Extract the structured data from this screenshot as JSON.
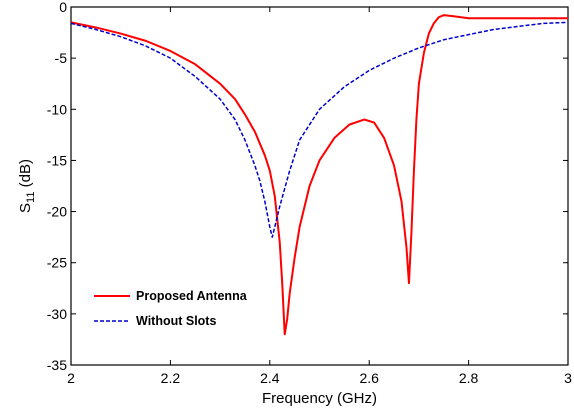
{
  "chart_data": {
    "type": "line",
    "title": "",
    "xlabel": "Frequency (GHz)",
    "ylabel": {
      "main": "S",
      "sub": "11",
      "unit": " (dB)"
    },
    "xlim": [
      2,
      3
    ],
    "ylim": [
      -35,
      0
    ],
    "x_ticks": [
      "2",
      "2.2",
      "2.4",
      "2.6",
      "2.8",
      "3"
    ],
    "y_ticks": [
      "0",
      "-5",
      "-10",
      "-15",
      "-20",
      "-25",
      "-30",
      "-35"
    ],
    "grid": false,
    "legend_position": "bottom-left",
    "series": [
      {
        "name": "Proposed Antenna",
        "color": "#ff0000",
        "style": "solid",
        "points": [
          [
            2.0,
            -1.5
          ],
          [
            2.05,
            -2.0
          ],
          [
            2.1,
            -2.6
          ],
          [
            2.15,
            -3.3
          ],
          [
            2.2,
            -4.3
          ],
          [
            2.25,
            -5.6
          ],
          [
            2.3,
            -7.5
          ],
          [
            2.33,
            -9.0
          ],
          [
            2.35,
            -10.5
          ],
          [
            2.37,
            -12.2
          ],
          [
            2.39,
            -14.5
          ],
          [
            2.4,
            -16.0
          ],
          [
            2.41,
            -18.5
          ],
          [
            2.42,
            -23.0
          ],
          [
            2.425,
            -27.0
          ],
          [
            2.43,
            -32.0
          ],
          [
            2.435,
            -30.5
          ],
          [
            2.44,
            -28.0
          ],
          [
            2.45,
            -24.5
          ],
          [
            2.46,
            -21.5
          ],
          [
            2.48,
            -17.5
          ],
          [
            2.5,
            -15.0
          ],
          [
            2.53,
            -12.8
          ],
          [
            2.56,
            -11.5
          ],
          [
            2.59,
            -11.0
          ],
          [
            2.61,
            -11.3
          ],
          [
            2.63,
            -12.8
          ],
          [
            2.65,
            -15.5
          ],
          [
            2.665,
            -19.0
          ],
          [
            2.675,
            -23.5
          ],
          [
            2.68,
            -27.0
          ],
          [
            2.685,
            -22.0
          ],
          [
            2.69,
            -16.0
          ],
          [
            2.695,
            -11.0
          ],
          [
            2.7,
            -7.5
          ],
          [
            2.71,
            -4.5
          ],
          [
            2.72,
            -2.6
          ],
          [
            2.73,
            -1.6
          ],
          [
            2.74,
            -1.0
          ],
          [
            2.75,
            -0.8
          ],
          [
            2.77,
            -0.9
          ],
          [
            2.8,
            -1.1
          ],
          [
            2.85,
            -1.1
          ],
          [
            2.9,
            -1.1
          ],
          [
            2.95,
            -1.1
          ],
          [
            3.0,
            -1.1
          ]
        ]
      },
      {
        "name": "Without Slots",
        "color": "#0000cc",
        "style": "dashed",
        "points": [
          [
            2.0,
            -1.6
          ],
          [
            2.05,
            -2.2
          ],
          [
            2.1,
            -2.9
          ],
          [
            2.15,
            -3.8
          ],
          [
            2.2,
            -5.0
          ],
          [
            2.25,
            -6.8
          ],
          [
            2.3,
            -9.0
          ],
          [
            2.33,
            -11.0
          ],
          [
            2.35,
            -13.0
          ],
          [
            2.37,
            -15.5
          ],
          [
            2.38,
            -17.0
          ],
          [
            2.39,
            -19.0
          ],
          [
            2.4,
            -21.5
          ],
          [
            2.405,
            -22.5
          ],
          [
            2.41,
            -21.5
          ],
          [
            2.42,
            -19.5
          ],
          [
            2.44,
            -16.0
          ],
          [
            2.46,
            -13.0
          ],
          [
            2.5,
            -10.0
          ],
          [
            2.55,
            -7.8
          ],
          [
            2.6,
            -6.2
          ],
          [
            2.65,
            -5.0
          ],
          [
            2.7,
            -4.0
          ],
          [
            2.75,
            -3.2
          ],
          [
            2.8,
            -2.7
          ],
          [
            2.85,
            -2.2
          ],
          [
            2.9,
            -1.9
          ],
          [
            2.95,
            -1.6
          ],
          [
            3.0,
            -1.5
          ]
        ]
      }
    ]
  }
}
